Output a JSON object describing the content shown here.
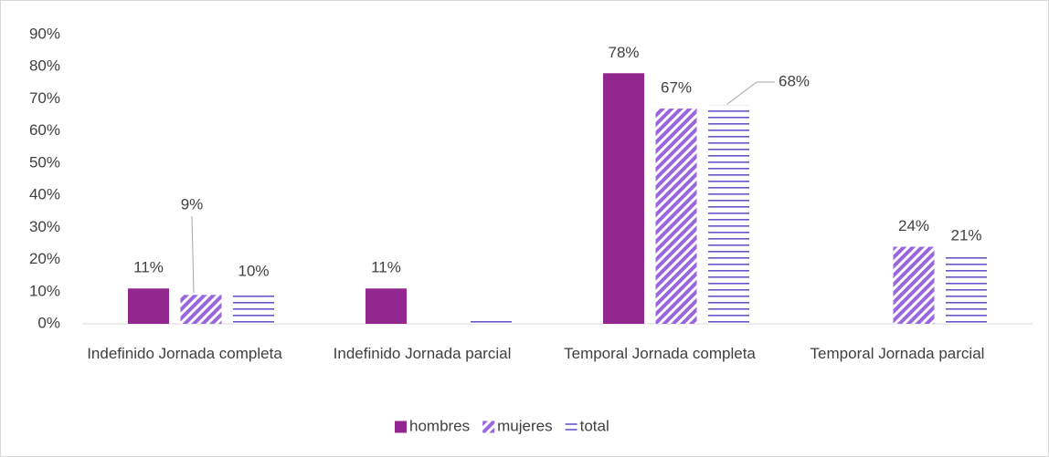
{
  "chart_data": {
    "type": "bar",
    "categories": [
      "Indefinido Jornada completa",
      "Indefinido Jornada parcial",
      "Temporal Jornada completa",
      "Temporal Jornada parcial"
    ],
    "series": [
      {
        "name": "hombres",
        "color": "#92278f",
        "pattern": "solid",
        "values": [
          11,
          11,
          78,
          null
        ],
        "value_labels": [
          "11%",
          "11%",
          "78%",
          null
        ]
      },
      {
        "name": "mujeres",
        "color": "#9966dd",
        "pattern": "diagonal",
        "values": [
          9,
          null,
          67,
          24
        ],
        "value_labels": [
          "9%",
          null,
          "67%",
          "24%"
        ]
      },
      {
        "name": "total",
        "color": "#6655cc",
        "pattern": "horizontal",
        "values": [
          10,
          1,
          68,
          21
        ],
        "value_labels": [
          "10%",
          null,
          "68%",
          "21%"
        ]
      }
    ],
    "ylim": [
      0,
      90
    ],
    "yticks": [
      {
        "value": 0,
        "label": "0%"
      },
      {
        "value": 10,
        "label": "10%"
      },
      {
        "value": 20,
        "label": "20%"
      },
      {
        "value": 30,
        "label": "30%"
      },
      {
        "value": 40,
        "label": "40%"
      },
      {
        "value": 50,
        "label": "50%"
      },
      {
        "value": 60,
        "label": "60%"
      },
      {
        "value": 70,
        "label": "70%"
      },
      {
        "value": 80,
        "label": "80%"
      },
      {
        "value": 90,
        "label": "90%"
      }
    ],
    "grid": false,
    "legend": "bottom"
  }
}
